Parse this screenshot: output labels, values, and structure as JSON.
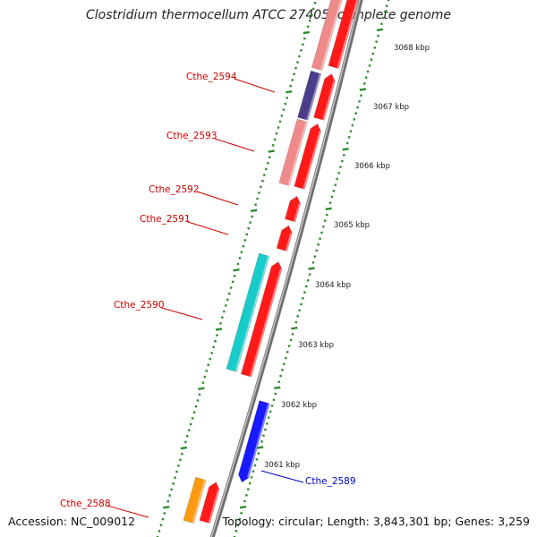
{
  "title": "Clostridium thermocellum ATCC 27405, complete genome",
  "footer": {
    "accession": "Accession: NC_009012",
    "summary": "Topology: circular; Length: 3,843,301 bp; Genes: 3,259"
  },
  "scale_labels": [
    "3068 kbp",
    "3067 kbp",
    "3066 kbp",
    "3065 kbp",
    "3064 kbp",
    "3063 kbp",
    "3062 kbp",
    "3061 kbp"
  ],
  "gene_labels": {
    "cthe_2594": "Cthe_2594",
    "cthe_2593": "Cthe_2593",
    "cthe_2592": "Cthe_2592",
    "cthe_2591": "Cthe_2591",
    "cthe_2590": "Cthe_2590",
    "cthe_2589": "Cthe_2589",
    "cthe_2588": "Cthe_2588"
  },
  "colors": {
    "backbone": "#8a8a8a",
    "tick": "#2e8b2e",
    "cds_forward": "#ff1a1a",
    "feature_pink": "#f08a8a",
    "feature_purple": "#4b3c8c",
    "feature_cyan": "#19cccc",
    "feature_blue": "#1a1aff",
    "feature_orange": "#ff9a10",
    "label_red": "#cc0000",
    "label_blue": "#0000cc"
  }
}
